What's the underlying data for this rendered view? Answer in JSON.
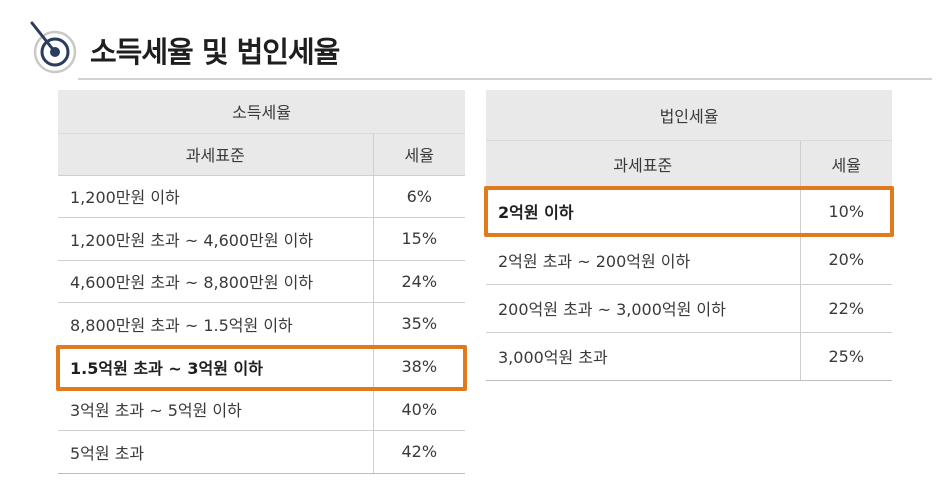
{
  "page": {
    "title": "소득세율 및 법인세율"
  },
  "colors": {
    "highlight": "#e07a1c",
    "header_bg": "#e9e9e9",
    "title_icon": "#2b3c5c"
  },
  "income_tax": {
    "title": "소득세율",
    "col_base": "과세표준",
    "col_rate": "세율",
    "rows": [
      {
        "base": "1,200만원 이하",
        "rate": "6%"
      },
      {
        "base": "1,200만원 초과 ~ 4,600만원 이하",
        "rate": "15%"
      },
      {
        "base": "4,600만원 초과 ~ 8,800만원 이하",
        "rate": "24%"
      },
      {
        "base": "8,800만원 초과 ~ 1.5억원 이하",
        "rate": "35%"
      },
      {
        "base": "1.5억원 초과 ~ 3억원 이하",
        "rate": "38%"
      },
      {
        "base": "3억원 초과 ~ 5억원 이하",
        "rate": "40%"
      },
      {
        "base": "5억원 초과",
        "rate": "42%"
      }
    ]
  },
  "corporate_tax": {
    "title": "법인세율",
    "col_base": "과세표준",
    "col_rate": "세율",
    "rows": [
      {
        "base": "2억원 이하",
        "rate": "10%"
      },
      {
        "base": "2억원 초과 ~  200억원 이하",
        "rate": "20%"
      },
      {
        "base": "200억원 초과 ~ 3,000억원 이하",
        "rate": "22%"
      },
      {
        "base": "3,000억원 초과",
        "rate": "25%"
      }
    ]
  }
}
